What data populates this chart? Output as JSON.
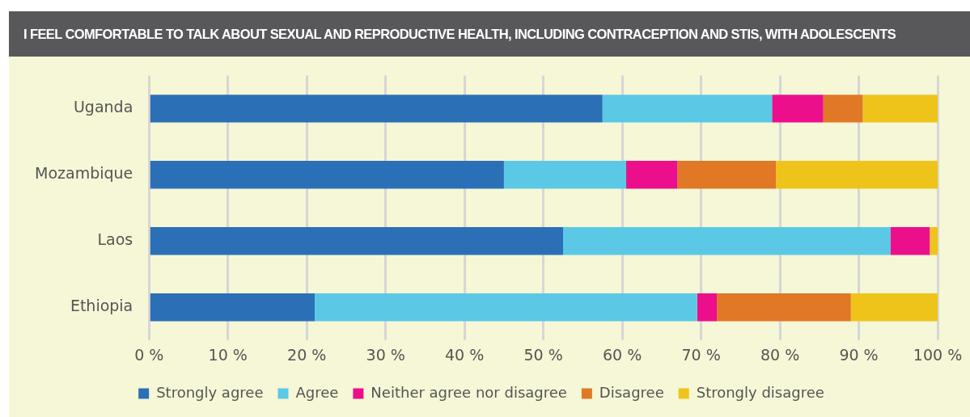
{
  "chart_data": {
    "type": "bar",
    "orientation": "horizontal",
    "stacked": true,
    "title": "I FEEL COMFORTABLE TO TALK ABOUT SEXUAL AND REPRODUCTIVE HEALTH, INCLUDING CONTRACEPTION AND STIS, WITH ADOLESCENTS",
    "categories": [
      "Uganda",
      "Mozambique",
      "Laos",
      "Ethiopia"
    ],
    "series": [
      {
        "name": "Strongly agree",
        "color": "#2b70b7",
        "values": [
          57.5,
          45,
          52.5,
          21
        ]
      },
      {
        "name": "Agree",
        "color": "#5bc9e6",
        "values": [
          21.5,
          15.5,
          41.5,
          48.5
        ]
      },
      {
        "name": "Neither agree nor disagree",
        "color": "#ec0f8b",
        "values": [
          6.5,
          6.5,
          5,
          2.5
        ]
      },
      {
        "name": "Disagree",
        "color": "#e07826",
        "values": [
          5,
          12.5,
          0,
          17
        ]
      },
      {
        "name": "Strongly disagree",
        "color": "#efc41a",
        "values": [
          9.5,
          20.5,
          1,
          11
        ]
      }
    ],
    "xlim": [
      0,
      100
    ],
    "xticks": [
      {
        "value": 0,
        "label": "0 %"
      },
      {
        "value": 10,
        "label": "10 %"
      },
      {
        "value": 20,
        "label": "20 %"
      },
      {
        "value": 30,
        "label": "30 %"
      },
      {
        "value": 40,
        "label": "40 %"
      },
      {
        "value": 50,
        "label": "50 %"
      },
      {
        "value": 60,
        "label": "60 %"
      },
      {
        "value": 70,
        "label": "70 %"
      },
      {
        "value": 80,
        "label": "80 %"
      },
      {
        "value": 90,
        "label": "90 %"
      },
      {
        "value": 100,
        "label": "100 %"
      }
    ],
    "grid": "x",
    "legend": "bottom"
  }
}
